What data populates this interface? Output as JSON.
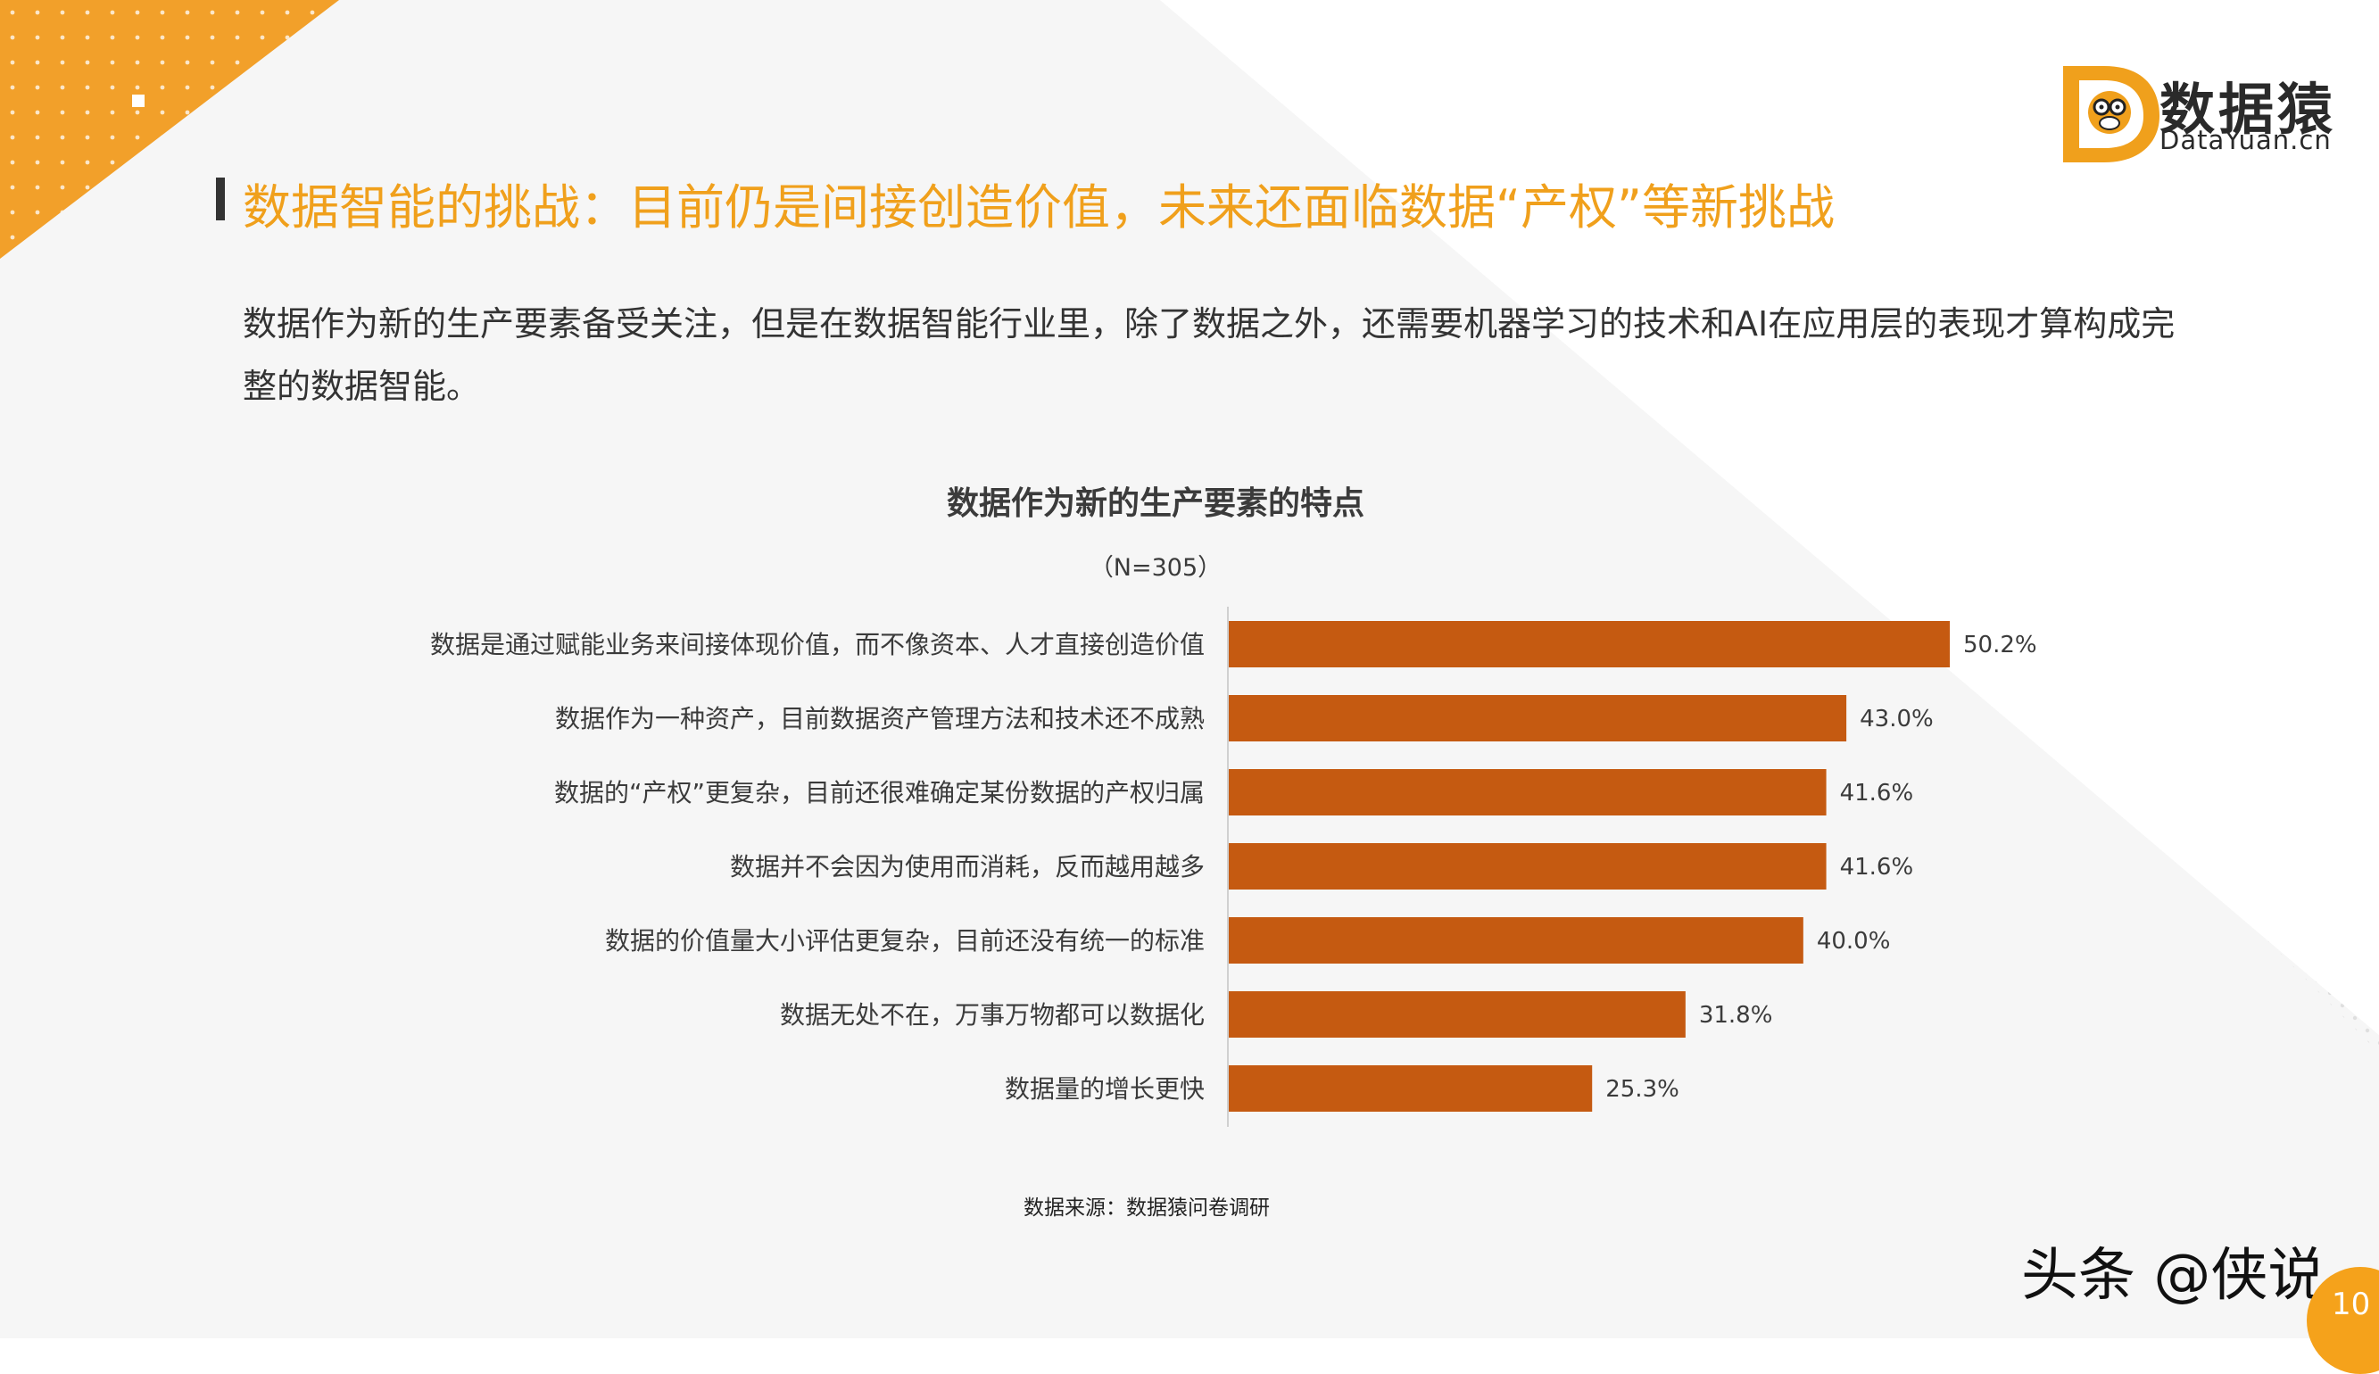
{
  "brand": {
    "name": "数据猿",
    "domain": "DataYuan.cn",
    "accent": "#f5a21b",
    "logo_mark": "monkey-d-logo-icon"
  },
  "page": {
    "title": "数据智能的挑战：目前仍是间接创造价值，未来还面临数据“产权”等新挑战",
    "intro": "数据作为新的生产要素备受关注，但是在数据智能行业里，除了数据之外，还需要机器学习的技术和AI在应用层的表现才算构成完整的数据智能。",
    "source": "数据来源：数据猿问卷调研",
    "watermark": "头条 @侠说",
    "page_number": "10"
  },
  "chart_data": {
    "type": "bar",
    "orientation": "horizontal",
    "title": "数据作为新的生产要素的特点",
    "subtitle": "（N=305）",
    "bar_color": "#c55a11",
    "categories": [
      "数据是通过赋能业务来间接体现价值，而不像资本、人才直接创造价值",
      "数据作为一种资产，目前数据资产管理方法和技术还不成熟",
      "数据的“产权”更复杂，目前还很难确定某份数据的产权归属",
      "数据并不会因为使用而消耗，反而越用越多",
      "数据的价值量大小评估更复杂，目前还没有统一的标准",
      "数据无处不在，万事万物都可以数据化",
      "数据量的增长更快"
    ],
    "values": [
      50.2,
      43.0,
      41.6,
      41.6,
      40.0,
      31.8,
      25.3
    ],
    "value_labels": [
      "50.2%",
      "43.0%",
      "41.6%",
      "41.6%",
      "40.0%",
      "31.8%",
      "25.3%"
    ],
    "xlim": [
      0,
      50.2
    ]
  }
}
